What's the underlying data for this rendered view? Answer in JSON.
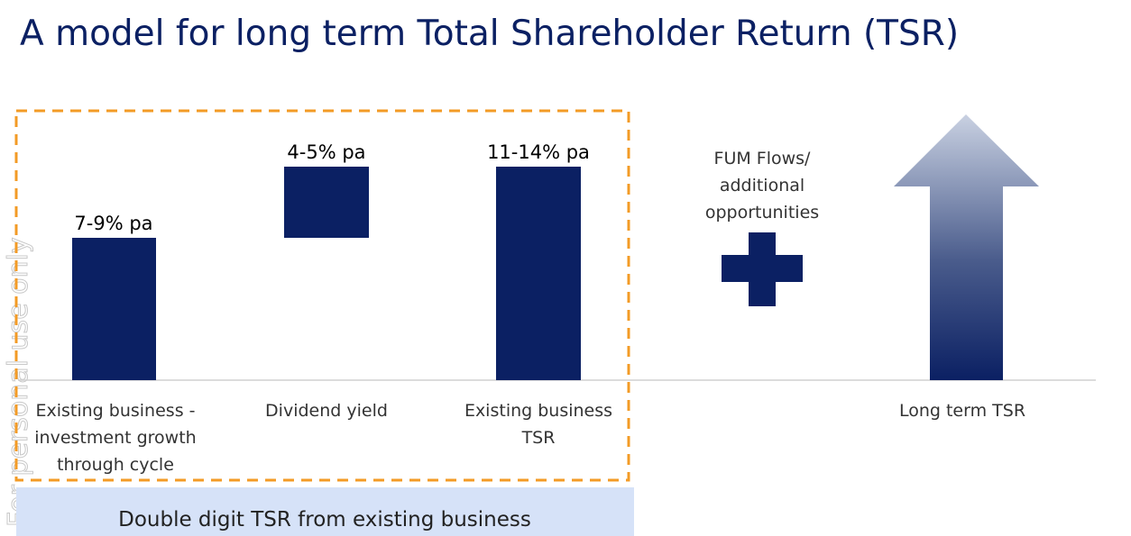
{
  "title": "A model for long term Total Shareholder Return (TSR)",
  "watermark": "For personal use only",
  "bars": [
    {
      "label": "7-9% pa",
      "category": [
        "Existing business -",
        "investment growth",
        "through cycle"
      ]
    },
    {
      "label": "4-5% pa",
      "category": [
        "Dividend yield"
      ]
    },
    {
      "label": "11-14% pa",
      "category": [
        "Existing business",
        "TSR"
      ]
    }
  ],
  "additional": [
    "FUM Flows/",
    "additional",
    "opportunities"
  ],
  "result": "Long term TSR",
  "banner": "Double digit TSR from existing business"
}
